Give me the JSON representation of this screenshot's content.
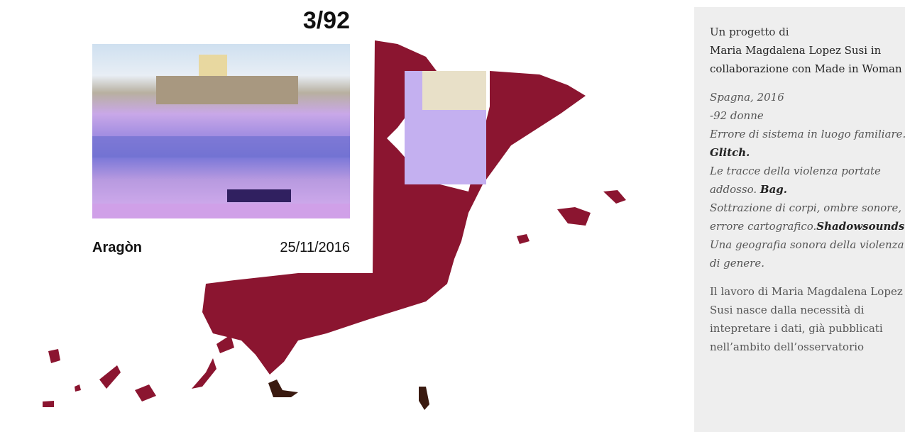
{
  "card": {
    "counter": "3/92",
    "region": "Aragòn",
    "date": "25/11/2016"
  },
  "sidebar": {
    "intro": "Un progetto di",
    "authors": "Maria Magdalena Lopez Susi in collaborazione con Made in Woman",
    "statement": [
      [
        {
          "text": "Spagna, 2016",
          "bold": false
        }
      ],
      [
        {
          "text": "-92 donne",
          "bold": false
        }
      ],
      [
        {
          "text": "Errore di sistema in luogo familiare. ",
          "bold": false
        },
        {
          "text": "Glitch.",
          "bold": true
        }
      ],
      [
        {
          "text": "Le tracce della violenza portate addosso. ",
          "bold": false
        },
        {
          "text": "Bag.",
          "bold": true
        }
      ],
      [
        {
          "text": "Sottrazione di corpi, ombre sonore, errore cartografico.",
          "bold": false
        },
        {
          "text": "Shadowsounds.",
          "bold": true
        }
      ],
      [
        {
          "text": "Una geografia sonora della violenza di genere.",
          "bold": false
        }
      ]
    ],
    "body": "Il lavoro di Maria Magdalena Lopez Susi nasce dalla necessità di intepretare i dati, già pubblicati nell’ambito dell’osservatorio"
  }
}
